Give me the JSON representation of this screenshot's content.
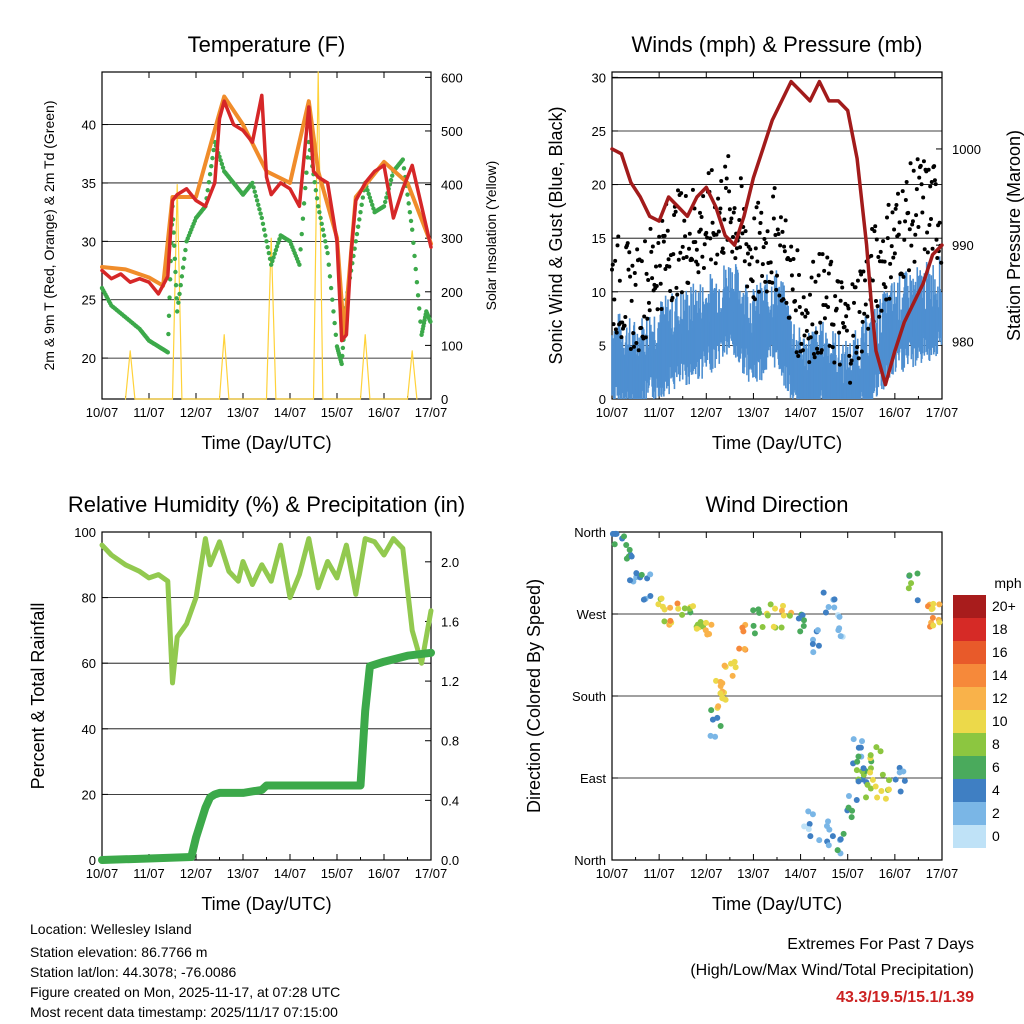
{
  "chart_data": [
    {
      "id": "temperature",
      "type": "line",
      "title": "Temperature (F)",
      "xlabel": "Time (Day/UTC)",
      "ylabel": "2m & 9m T (Red, Orange) & 2m Td (Green)",
      "ylabel_right": "Solar Insolation (Yellow)",
      "x_ticks": [
        "10/07",
        "11/07",
        "12/07",
        "13/07",
        "14/07",
        "15/07",
        "16/07",
        "17/07"
      ],
      "xlim": [
        0,
        7
      ],
      "ylim": [
        16.5,
        44.5
      ],
      "y_ticks": [
        20,
        25,
        30,
        35,
        40
      ],
      "ylim_right": [
        0,
        610
      ],
      "y_ticks_right": [
        0,
        100,
        200,
        300,
        400,
        500,
        600
      ],
      "colors": {
        "t2m": "#d62728",
        "t9m": "#f08c2a",
        "td": "#3ca94a",
        "solar": "#ffd23a"
      },
      "series": [
        {
          "name": "2m T",
          "color_key": "t2m",
          "x": [
            0,
            0.2,
            0.4,
            0.6,
            0.8,
            1.0,
            1.2,
            1.4,
            1.5,
            1.6,
            1.8,
            2.0,
            2.2,
            2.4,
            2.5,
            2.6,
            2.8,
            3.0,
            3.2,
            3.4,
            3.5,
            3.6,
            3.8,
            4.0,
            4.2,
            4.4,
            4.5,
            4.6,
            4.8,
            5.0,
            5.1,
            5.2,
            5.3,
            5.4,
            5.6,
            5.8,
            6.0,
            6.2,
            6.4,
            6.6,
            6.8,
            7.0
          ],
          "values": [
            27.5,
            26.8,
            27.2,
            26.5,
            26.8,
            26.5,
            25.5,
            27,
            33.5,
            34,
            34.5,
            33.5,
            33,
            35,
            40.5,
            42,
            40,
            39.5,
            38.5,
            42.5,
            35.5,
            34,
            35,
            34.5,
            33,
            41.5,
            36,
            35.5,
            35,
            30,
            21.5,
            22,
            29,
            33.5,
            35,
            36,
            36.5,
            32,
            34.5,
            36.5,
            33,
            29.5
          ]
        },
        {
          "name": "9m T",
          "color_key": "t9m",
          "x": [
            0,
            0.5,
            1.0,
            1.3,
            1.5,
            2.0,
            2.5,
            2.6,
            3.0,
            3.5,
            4.0,
            4.4,
            4.6,
            5.0,
            5.15,
            5.4,
            6.0,
            6.5,
            7.0
          ],
          "values": [
            27.8,
            27.6,
            26.9,
            26.2,
            33.8,
            33.8,
            41,
            42.4,
            40,
            36,
            35,
            42,
            36,
            30.3,
            22,
            33.8,
            36.8,
            35,
            29.8
          ]
        },
        {
          "name": "2m Td",
          "color_key": "td",
          "x": [
            0,
            0.2,
            0.5,
            0.8,
            1.0,
            1.2,
            1.4,
            1.5,
            1.6,
            1.8,
            2.0,
            2.2,
            2.4,
            2.6,
            2.8,
            3.0,
            3.2,
            3.4,
            3.6,
            3.8,
            4.0,
            4.2,
            4.4,
            4.6,
            4.8,
            5.0,
            5.1,
            5.2,
            5.4,
            5.6,
            5.8,
            6.0,
            6.2,
            6.4,
            6.6,
            6.8,
            6.9,
            7.0
          ],
          "values": [
            26,
            24.5,
            23.5,
            22.5,
            21.5,
            21,
            20.5,
            33,
            24,
            30,
            32,
            33,
            38.5,
            36,
            35,
            34,
            35,
            32,
            28,
            30.5,
            30,
            28,
            38.5,
            33,
            29,
            21,
            19.5,
            25,
            30,
            35,
            32.5,
            33,
            36,
            37,
            31,
            22,
            24,
            23
          ]
        },
        {
          "name": "Solar Insolation",
          "color_key": "solar",
          "axis": "right",
          "x": [
            0.5,
            0.6,
            0.7,
            1.5,
            1.6,
            1.7,
            2.5,
            2.6,
            2.7,
            3.5,
            3.6,
            3.7,
            4.5,
            4.6,
            4.7,
            5.5,
            5.6,
            5.7,
            6.5,
            6.6,
            6.7
          ],
          "values": [
            0,
            90,
            0,
            0,
            400,
            0,
            0,
            120,
            0,
            0,
            300,
            0,
            0,
            610,
            0,
            0,
            120,
            0,
            0,
            90,
            0
          ]
        }
      ]
    },
    {
      "id": "winds",
      "type": "scatter",
      "title": "Winds (mph) & Pressure (mb)",
      "xlabel": "Time (Day/UTC)",
      "ylabel": "Sonic Wind & Gust (Blue, Black)",
      "ylabel_right": "Station Pressure (Maroon)",
      "x_ticks": [
        "10/07",
        "11/07",
        "12/07",
        "13/07",
        "14/07",
        "15/07",
        "16/07",
        "17/07"
      ],
      "xlim": [
        0,
        7
      ],
      "ylim": [
        0,
        30.5
      ],
      "y_ticks": [
        0,
        5,
        10,
        15,
        20,
        25,
        30
      ],
      "ylim_right": [
        974,
        1008
      ],
      "y_ticks_right": [
        980,
        990,
        1000
      ],
      "colors": {
        "wind": "#4e8fd1",
        "gust": "#000000",
        "pressure": "#a21b1b"
      },
      "series": [
        {
          "name": "Sonic Wind",
          "color_key": "wind",
          "x": [
            0,
            0.5,
            1.0,
            1.5,
            2.0,
            2.5,
            3.0,
            3.5,
            4.0,
            4.5,
            5.0,
            5.5,
            6.0,
            6.5,
            7.0
          ],
          "values": [
            5,
            4,
            6,
            7,
            8,
            10,
            7,
            9,
            3,
            4,
            2,
            5,
            8,
            9,
            10
          ]
        },
        {
          "name": "Gust",
          "color_key": "gust",
          "x": [
            0,
            0.5,
            1.0,
            1.5,
            2.0,
            2.5,
            3.0,
            3.5,
            4.0,
            4.5,
            5.0,
            5.5,
            6.0,
            6.5,
            7.0
          ],
          "values": [
            11,
            9,
            13,
            15,
            16,
            18,
            13,
            15,
            8,
            9,
            6,
            11,
            15,
            18,
            17
          ]
        },
        {
          "name": "Station Pressure",
          "color_key": "pressure",
          "axis": "right",
          "x": [
            0,
            0.2,
            0.4,
            0.6,
            0.8,
            1.0,
            1.2,
            1.4,
            1.6,
            1.8,
            2.0,
            2.2,
            2.4,
            2.6,
            2.8,
            3.0,
            3.2,
            3.4,
            3.6,
            3.8,
            4.0,
            4.2,
            4.4,
            4.6,
            4.8,
            5.0,
            5.2,
            5.4,
            5.5,
            5.6,
            5.8,
            6.0,
            6.2,
            6.4,
            6.6,
            6.8,
            7.0
          ],
          "values": [
            1000,
            999.5,
            996.5,
            995,
            993,
            992.5,
            995,
            994,
            993,
            995,
            996,
            994,
            991,
            990,
            993,
            997,
            1000,
            1003,
            1005,
            1007,
            1006,
            1005,
            1007,
            1005,
            1005,
            1004,
            999,
            990,
            984,
            979,
            975.5,
            979,
            982,
            984,
            986,
            989,
            990
          ]
        }
      ]
    },
    {
      "id": "humidity",
      "type": "line",
      "title": "Relative Humidity (%) & Precipitation (in)",
      "xlabel": "Time (Day/UTC)",
      "ylabel": "Percent & Total Rainfall",
      "x_ticks": [
        "10/07",
        "11/07",
        "12/07",
        "13/07",
        "14/07",
        "15/07",
        "16/07",
        "17/07"
      ],
      "xlim": [
        0,
        7
      ],
      "ylim": [
        0,
        100
      ],
      "y_ticks": [
        0,
        20,
        40,
        60,
        80,
        100
      ],
      "ylim_right": [
        0,
        2.2
      ],
      "y_ticks_right": [
        "0.0",
        "0.4",
        "0.8",
        "1.2",
        "1.6",
        "2.0"
      ],
      "colors": {
        "rh": "#92c94f",
        "rain": "#3ca94a"
      },
      "series": [
        {
          "name": "Relative Humidity",
          "color_key": "rh",
          "x": [
            0,
            0.2,
            0.5,
            0.8,
            1.0,
            1.2,
            1.4,
            1.5,
            1.6,
            1.8,
            2.0,
            2.2,
            2.3,
            2.5,
            2.7,
            2.9,
            3.0,
            3.2,
            3.4,
            3.6,
            3.8,
            4.0,
            4.2,
            4.4,
            4.6,
            4.8,
            5.0,
            5.2,
            5.4,
            5.6,
            5.8,
            6.0,
            6.2,
            6.4,
            6.6,
            6.8,
            7.0
          ],
          "values": [
            96,
            93,
            90,
            88,
            86,
            87,
            85,
            54,
            68,
            72,
            80,
            98,
            90,
            97,
            88,
            85,
            91,
            84,
            90,
            85,
            96,
            80,
            87,
            98,
            83,
            91,
            86,
            96,
            81,
            98,
            97,
            93,
            98,
            95,
            70,
            60,
            76
          ]
        },
        {
          "name": "Total Rainfall",
          "color_key": "rain",
          "axis": "right",
          "x": [
            0,
            1.0,
            1.9,
            2.0,
            2.1,
            2.2,
            2.3,
            2.4,
            2.5,
            3.0,
            3.4,
            3.5,
            4.0,
            5.0,
            5.5,
            5.6,
            5.7,
            6.0,
            6.5,
            7.0
          ],
          "values": [
            0,
            0.01,
            0.02,
            0.15,
            0.25,
            0.35,
            0.42,
            0.44,
            0.45,
            0.45,
            0.47,
            0.5,
            0.5,
            0.5,
            0.5,
            1.0,
            1.3,
            1.33,
            1.37,
            1.39
          ]
        }
      ]
    },
    {
      "id": "winddir",
      "type": "scatter",
      "title": "Wind Direction",
      "xlabel": "Time (Day/UTC)",
      "ylabel": "Direction (Colored By Speed)",
      "x_ticks": [
        "10/07",
        "11/07",
        "12/07",
        "13/07",
        "14/07",
        "15/07",
        "16/07",
        "17/07"
      ],
      "xlim": [
        0,
        7
      ],
      "ylim": [
        0,
        360
      ],
      "y_ticks": [
        0,
        90,
        180,
        270,
        360
      ],
      "y_tick_labels": [
        "North",
        "East",
        "South",
        "West",
        "North"
      ],
      "legend_title": "mph",
      "legend_labels": [
        "20+",
        "18",
        "16",
        "14",
        "12",
        "10",
        "8",
        "6",
        "4",
        "2",
        "0"
      ],
      "legend_colors": [
        "#a81c1c",
        "#d62a26",
        "#e85a2a",
        "#f6893a",
        "#f9b24a",
        "#ecd94a",
        "#8cc640",
        "#4aaa5c",
        "#3f7fc3",
        "#7ab6e6",
        "#bfe2f7"
      ],
      "x": [
        0.1,
        0.3,
        0.5,
        0.7,
        1.0,
        1.3,
        1.6,
        1.9,
        2.1,
        2.3,
        2.5,
        2.8,
        3.1,
        3.4,
        3.7,
        4.0,
        4.3,
        4.6,
        4.9,
        5.2,
        5.4,
        5.6,
        5.8,
        6.1,
        6.4,
        6.7,
        6.9,
        4.2,
        4.5,
        4.8,
        5.1,
        5.3,
        5.5,
        2.2,
        2.25
      ],
      "values": [
        355,
        345,
        320,
        300,
        275,
        270,
        272,
        268,
        250,
        190,
        205,
        245,
        262,
        270,
        268,
        265,
        240,
        280,
        255,
        120,
        95,
        110,
        80,
        90,
        300,
        270,
        270,
        40,
        30,
        20,
        60,
        100,
        80,
        150,
        180
      ],
      "speeds": [
        4,
        6,
        3,
        4,
        9,
        12,
        8,
        10,
        11,
        10,
        12,
        14,
        8,
        9,
        10,
        5,
        3,
        4,
        2,
        3,
        6,
        8,
        9,
        2,
        6,
        12,
        10,
        2,
        3,
        4,
        4,
        6,
        9,
        4,
        11
      ]
    }
  ],
  "info": {
    "location": "Location: Wellesley Island",
    "elevation": "Station elevation: 86.7766 m",
    "latlon": "Station lat/lon: 44.3078; -76.0086",
    "created": "Figure created on Mon, 2025-11-17, at 07:28 UTC",
    "recent": "Most recent data timestamp: 2025/11/17 07:15:00"
  },
  "extremes": {
    "heading": "Extremes For Past 7 Days",
    "subheading": "(High/Low/Max Wind/Total Precipitation)",
    "values": "43.3/19.5/15.1/1.39"
  }
}
